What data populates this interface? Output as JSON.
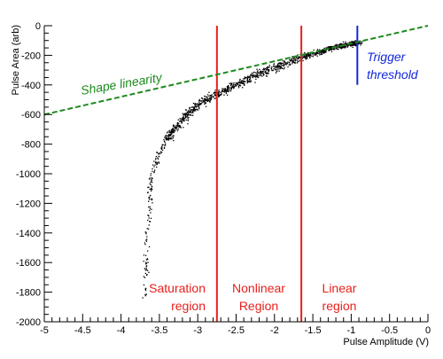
{
  "chart_data": {
    "type": "scatter",
    "title": "",
    "xlabel": "Pulse Amplitude (V)",
    "ylabel": "Pulse Area (arb)",
    "xlim": [
      -5,
      0
    ],
    "ylim": [
      -2000,
      0
    ],
    "x_ticks": [
      -5,
      -4.5,
      -4,
      -3.5,
      -3,
      -2.5,
      -2,
      -1.5,
      -1,
      -0.5,
      0
    ],
    "x_tick_labels": [
      "-5",
      "-4.5",
      "-4",
      "-3.5",
      "-3",
      "-2.5",
      "-2",
      "-1.5",
      "-1",
      "-0.5",
      "0"
    ],
    "y_ticks": [
      -2000,
      -1800,
      -1600,
      -1400,
      -1200,
      -1000,
      -800,
      -600,
      -400,
      -200,
      0
    ],
    "y_tick_labels": [
      "-2000",
      "-1800",
      "-1600",
      "-1400",
      "-1200",
      "-1000",
      "-800",
      "-600",
      "-400",
      "-200",
      "0"
    ],
    "grid": false,
    "series": [
      {
        "kind": "scatter-band",
        "color": "#000000",
        "trend": [
          [
            -3.7,
            -1850
          ],
          [
            -3.68,
            -1600
          ],
          [
            -3.65,
            -1300
          ],
          [
            -3.62,
            -1100
          ],
          [
            -3.58,
            -950
          ],
          [
            -3.5,
            -850
          ],
          [
            -3.4,
            -760
          ],
          [
            -3.3,
            -690
          ],
          [
            -3.15,
            -600
          ],
          [
            -3.0,
            -530
          ],
          [
            -2.8,
            -470
          ],
          [
            -2.6,
            -420
          ],
          [
            -2.4,
            -370
          ],
          [
            -2.2,
            -320
          ],
          [
            -2.0,
            -280
          ],
          [
            -1.8,
            -240
          ],
          [
            -1.6,
            -200
          ],
          [
            -1.4,
            -170
          ],
          [
            -1.2,
            -140
          ],
          [
            -1.0,
            -120
          ],
          [
            -0.9,
            -110
          ]
        ]
      },
      {
        "kind": "line",
        "name": "Shape linearity",
        "color": "#1e8a1e",
        "dashed": true,
        "points": [
          [
            -5,
            -600
          ],
          [
            0,
            0
          ]
        ]
      }
    ],
    "vertical_lines": [
      {
        "x": -2.75,
        "y_range": [
          -2000,
          0
        ],
        "color": "#e8201b"
      },
      {
        "x": -1.65,
        "y_range": [
          -2000,
          0
        ],
        "color": "#e8201b"
      },
      {
        "x": -0.92,
        "y_range": [
          -400,
          0
        ],
        "color": "#1428d8"
      }
    ],
    "annotations": [
      {
        "id": "shape",
        "lines": [
          "Shape linearity"
        ],
        "color": "#1e8a1e",
        "italic": true
      },
      {
        "id": "trigger",
        "lines": [
          "Trigger",
          "threshold"
        ],
        "color": "#1428d8",
        "italic": true
      },
      {
        "id": "saturation",
        "lines": [
          "Saturation",
          "region"
        ],
        "color": "#e8201b",
        "italic": false
      },
      {
        "id": "nonlinear",
        "lines": [
          "Nonlinear",
          "Region"
        ],
        "color": "#e8201b",
        "italic": false
      },
      {
        "id": "linear",
        "lines": [
          "Linear",
          "region"
        ],
        "color": "#e8201b",
        "italic": false
      }
    ]
  }
}
